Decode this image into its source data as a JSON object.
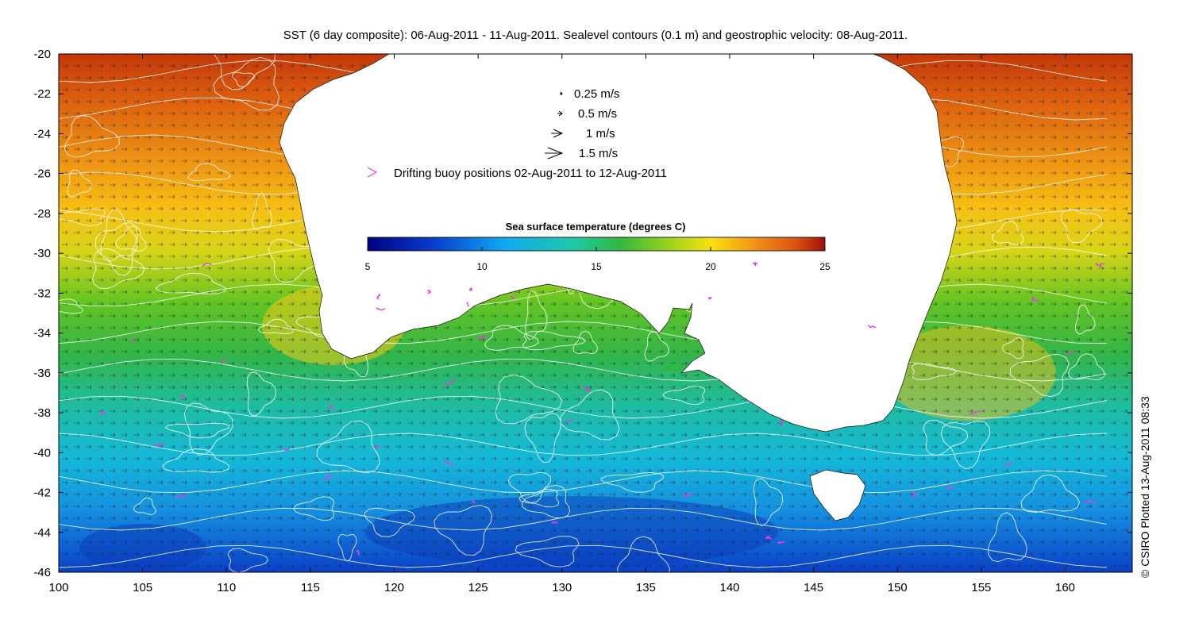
{
  "title": "SST (6 day composite): 06-Aug-2011 - 11-Aug-2011. Sealevel contours (0.1 m) and geostrophic velocity: 08-Aug-2011.",
  "credit": "© CSIRO Plotted 13-Aug-2011 08:33",
  "axes": {
    "x_ticks": [
      "100",
      "105",
      "110",
      "115",
      "120",
      "125",
      "130",
      "135",
      "140",
      "145",
      "150",
      "155",
      "160"
    ],
    "y_ticks": [
      "-20",
      "-22",
      "-24",
      "-26",
      "-28",
      "-30",
      "-32",
      "-34",
      "-36",
      "-38",
      "-40",
      "-42",
      "-44",
      "-46"
    ],
    "lon_range": [
      100,
      164
    ],
    "lat_range": [
      -46,
      -20
    ]
  },
  "legend": {
    "vectors": [
      {
        "label": "0.25 m/s"
      },
      {
        "label": "0.5 m/s"
      },
      {
        "label": "1 m/s"
      },
      {
        "label": "1.5 m/s"
      }
    ],
    "buoy_label": "Drifting buoy positions 02-Aug-2011 to 12-Aug-2011",
    "buoy_color": "#e040e0"
  },
  "colorbar": {
    "title": "Sea surface temperature (degrees C)",
    "ticks": [
      "5",
      "10",
      "15",
      "20",
      "25"
    ],
    "range": [
      5,
      25
    ]
  },
  "colors": {
    "land": "#ffffff",
    "contour": "#ffffff",
    "vector": "#000000",
    "sst_warm": "#c83a08",
    "sst_cold": "#0a3ad0"
  }
}
